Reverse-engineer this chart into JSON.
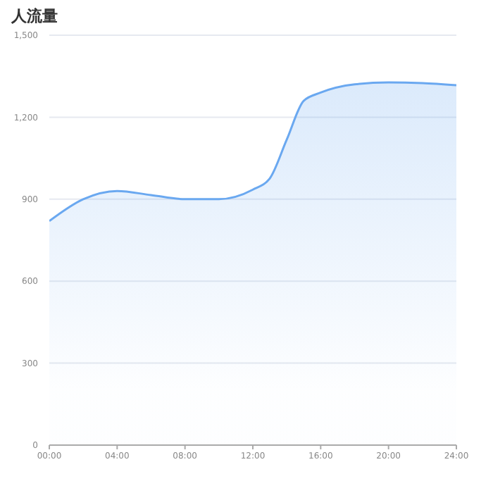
{
  "chart_data": {
    "type": "area",
    "title": "人流量",
    "x": [
      0,
      2,
      4,
      6,
      8,
      10,
      12,
      13,
      14,
      15,
      16,
      18,
      20,
      22,
      24
    ],
    "series": [
      {
        "color": "#6aa8f0",
        "values": [
          820,
          900,
          930,
          915,
          900,
          900,
          935,
          976,
          1118,
          1260,
          1290,
          1320,
          1327,
          1325,
          1317
        ]
      }
    ],
    "xlim": [
      0,
      24
    ],
    "xticks": [
      {
        "value": 0,
        "label": "00:00"
      },
      {
        "value": 4,
        "label": "04:00"
      },
      {
        "value": 8,
        "label": "08:00"
      },
      {
        "value": 12,
        "label": "12:00"
      },
      {
        "value": 16,
        "label": "16:00"
      },
      {
        "value": 20,
        "label": "20:00"
      },
      {
        "value": 24,
        "label": "24:00"
      }
    ],
    "ylim": [
      0,
      1500
    ],
    "yticks": [
      {
        "value": 0,
        "label": "0"
      },
      {
        "value": 300,
        "label": "300"
      },
      {
        "value": 600,
        "label": "600"
      },
      {
        "value": 900,
        "label": "900"
      },
      {
        "value": 1200,
        "label": "1,200"
      },
      {
        "value": 1500,
        "label": "1,500"
      }
    ],
    "grid": "y"
  }
}
